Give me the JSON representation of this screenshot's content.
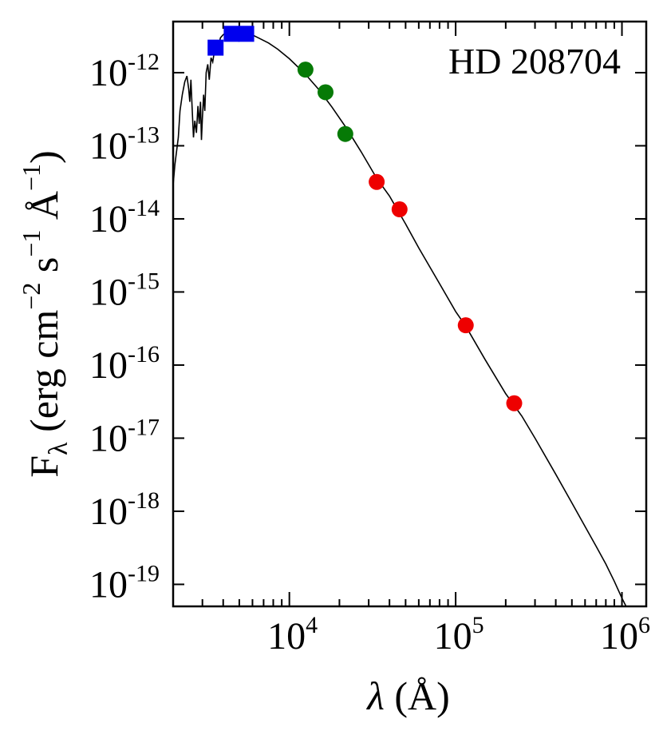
{
  "chart_data": {
    "type": "scatter",
    "title": "HD 208704",
    "xlabel": {
      "prefix": "λ",
      "text": " (Å)"
    },
    "ylabel": {
      "main": "F",
      "sub": "λ",
      "text": " (erg cm",
      "sup1": "−2",
      "text2": " s",
      "sup2": "−1",
      "text3": " Å",
      "sup3": "−1",
      "close": ")"
    },
    "x_scale": "log",
    "y_scale": "log",
    "xlim": [
      2000,
      1400000
    ],
    "ylim": [
      5e-20,
      5e-12
    ],
    "x_ticks": [
      {
        "value": 10000,
        "base": "10",
        "exp": "4"
      },
      {
        "value": 100000,
        "base": "10",
        "exp": "5"
      },
      {
        "value": 1000000,
        "base": "10",
        "exp": "6"
      }
    ],
    "y_ticks": [
      {
        "value": 1e-12,
        "base": "10",
        "exp": "-12"
      },
      {
        "value": 1e-13,
        "base": "10",
        "exp": "-13"
      },
      {
        "value": 1e-14,
        "base": "10",
        "exp": "-14"
      },
      {
        "value": 1e-15,
        "base": "10",
        "exp": "-15"
      },
      {
        "value": 1e-16,
        "base": "10",
        "exp": "-16"
      },
      {
        "value": 1e-17,
        "base": "10",
        "exp": "-17"
      },
      {
        "value": 1e-18,
        "base": "10",
        "exp": "-18"
      },
      {
        "value": 1e-19,
        "base": "10",
        "exp": "-19"
      }
    ],
    "grid": false,
    "series": [
      {
        "marker": "square",
        "color": "#0000ee",
        "points": [
          [
            3600,
            2.2e-12
          ],
          [
            4500,
            3.4e-12
          ],
          [
            5500,
            3.4e-12
          ]
        ]
      },
      {
        "marker": "circle",
        "color": "#067a06",
        "points": [
          [
            12500,
            1.1e-12
          ],
          [
            16500,
            5.4e-13
          ],
          [
            21700,
            1.45e-13
          ]
        ]
      },
      {
        "marker": "circle",
        "color": "#ee0000",
        "points": [
          [
            33500,
            3.2e-14
          ],
          [
            46000,
            1.35e-14
          ],
          [
            115000,
            3.5e-16
          ],
          [
            225000,
            3e-17
          ]
        ]
      }
    ],
    "model": {
      "color": "#000000",
      "points": [
        [
          2000,
          2.9e-14
        ],
        [
          2050,
          5.5e-14
        ],
        [
          2150,
          1.3e-13
        ],
        [
          2200,
          3e-13
        ],
        [
          2270,
          5e-13
        ],
        [
          2350,
          7.5e-13
        ],
        [
          2420,
          9e-13
        ],
        [
          2480,
          6e-13
        ],
        [
          2520,
          4e-13
        ],
        [
          2560,
          8e-13
        ],
        [
          2600,
          3.5e-13
        ],
        [
          2650,
          1.3e-13
        ],
        [
          2700,
          2.2e-13
        ],
        [
          2760,
          1.5e-13
        ],
        [
          2820,
          3.5e-13
        ],
        [
          2870,
          2e-13
        ],
        [
          2920,
          4e-13
        ],
        [
          2960,
          1.2e-13
        ],
        [
          3000,
          2.4e-13
        ],
        [
          3050,
          5e-13
        ],
        [
          3100,
          3e-13
        ],
        [
          3160,
          1e-12
        ],
        [
          3230,
          1.3e-12
        ],
        [
          3300,
          8e-13
        ],
        [
          3380,
          1.6e-12
        ],
        [
          3460,
          1.4e-12
        ],
        [
          3550,
          2e-12
        ],
        [
          3650,
          2.6e-12
        ],
        [
          3750,
          2.3e-12
        ],
        [
          3850,
          3e-12
        ],
        [
          4000,
          3.3e-12
        ],
        [
          4300,
          3.7e-12
        ],
        [
          4700,
          3.8e-12
        ],
        [
          5200,
          3.7e-12
        ],
        [
          5800,
          3.4e-12
        ],
        [
          6500,
          3e-12
        ],
        [
          7500,
          2.55e-12
        ],
        [
          8500,
          2.1e-12
        ],
        [
          10000,
          1.55e-12
        ],
        [
          12500,
          9.5e-13
        ],
        [
          15000,
          5.9e-13
        ],
        [
          18000,
          3.4e-13
        ],
        [
          22000,
          1.75e-13
        ],
        [
          27000,
          8.3e-14
        ],
        [
          33500,
          3.6e-14
        ],
        [
          40000,
          2.05e-14
        ],
        [
          50000,
          8.5e-15
        ],
        [
          60000,
          4e-15
        ],
        [
          80000,
          1.3e-15
        ],
        [
          100000,
          5.4e-16
        ],
        [
          115000,
          3.4e-16
        ],
        [
          150000,
          1.2e-16
        ],
        [
          200000,
          4.05e-17
        ],
        [
          250000,
          2e-17
        ],
        [
          300000,
          1e-17
        ],
        [
          400000,
          3.2e-18
        ],
        [
          500000,
          1.3e-18
        ],
        [
          600000,
          6.2e-19
        ],
        [
          700000,
          3.3e-19
        ],
        [
          800000,
          1.9e-19
        ],
        [
          900000,
          1.1e-19
        ],
        [
          1000000,
          6.5e-20
        ],
        [
          1100000,
          4.2e-20
        ]
      ]
    }
  }
}
